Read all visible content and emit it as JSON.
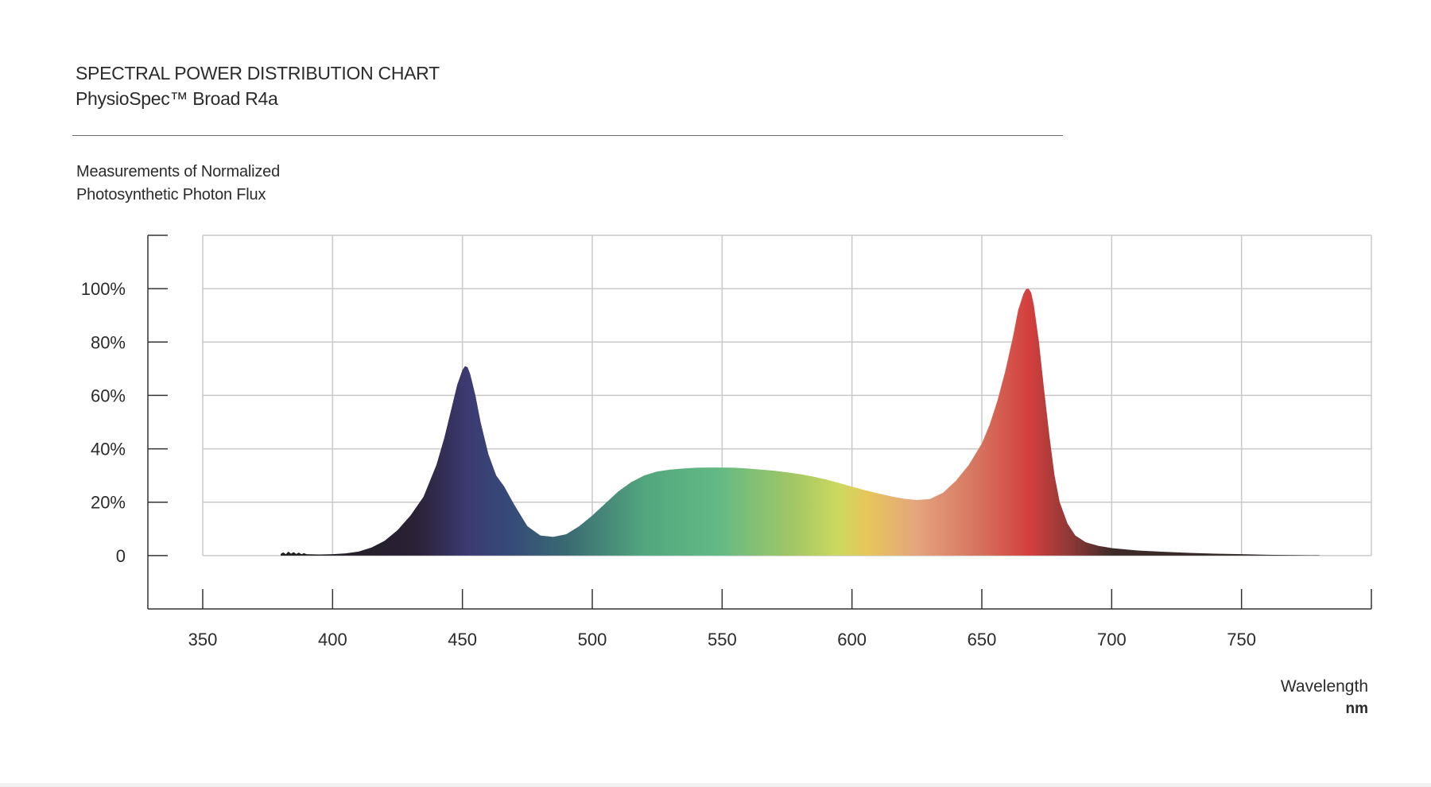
{
  "header": {
    "title": "SPECTRAL POWER DISTRIBUTION CHART",
    "subtitle": "PhysioSpec™ Broad R4a"
  },
  "chart_data": {
    "type": "area",
    "title": "SPECTRAL POWER DISTRIBUTION CHART",
    "subtitle": "PhysioSpec™ Broad R4a",
    "ylabel_lines": [
      "Measurements of Normalized",
      "Photosynthetic Photon Flux"
    ],
    "xlabel": "Wavelength",
    "xunit": "nm",
    "xlim": [
      350,
      800
    ],
    "ylim": [
      -20,
      120
    ],
    "x_ticks": [
      350,
      400,
      450,
      500,
      550,
      600,
      650,
      700,
      750
    ],
    "x_tick_labels": [
      "350",
      "400",
      "450",
      "500",
      "550",
      "600",
      "650",
      "700",
      "750"
    ],
    "y_ticks": [
      0,
      20,
      40,
      60,
      80,
      100
    ],
    "y_tick_labels": [
      "0",
      "20%",
      "40%",
      "60%",
      "80%",
      "100%"
    ],
    "grid": true,
    "legend": "none",
    "gradient_stops": [
      {
        "nm": 380,
        "color": "#1e1e1e"
      },
      {
        "nm": 432,
        "color": "#2a2135"
      },
      {
        "nm": 452,
        "color": "#3c3a72"
      },
      {
        "nm": 468,
        "color": "#354a78"
      },
      {
        "nm": 490,
        "color": "#3a6a72"
      },
      {
        "nm": 520,
        "color": "#52a67e"
      },
      {
        "nm": 548,
        "color": "#62b985"
      },
      {
        "nm": 578,
        "color": "#a4c764"
      },
      {
        "nm": 595,
        "color": "#ccd95f"
      },
      {
        "nm": 606,
        "color": "#e6c65a"
      },
      {
        "nm": 625,
        "color": "#e4a47e"
      },
      {
        "nm": 650,
        "color": "#d5705c"
      },
      {
        "nm": 668,
        "color": "#d4403e"
      },
      {
        "nm": 685,
        "color": "#8a3836"
      },
      {
        "nm": 700,
        "color": "#3e2a28"
      },
      {
        "nm": 780,
        "color": "#2a2a2a"
      }
    ],
    "series": [
      {
        "x": [
          380,
          381,
          382,
          383,
          384,
          385,
          386,
          387,
          388,
          389,
          390,
          395,
          400,
          405,
          410,
          415,
          420,
          425,
          430,
          435,
          440,
          443,
          446,
          448,
          450,
          451,
          452,
          453,
          455,
          457,
          460,
          463,
          466,
          470,
          475,
          480,
          485,
          490,
          495,
          500,
          505,
          510,
          515,
          520,
          525,
          530,
          535,
          540,
          545,
          550,
          555,
          560,
          565,
          570,
          575,
          580,
          585,
          590,
          595,
          600,
          605,
          610,
          615,
          620,
          625,
          630,
          635,
          640,
          645,
          650,
          653,
          656,
          659,
          662,
          664,
          666,
          667,
          668,
          669,
          670,
          672,
          674,
          676,
          678,
          680,
          683,
          686,
          690,
          695,
          700,
          710,
          720,
          730,
          740,
          750,
          760,
          770,
          780
        ],
        "y": [
          0.6,
          1.2,
          0.5,
          1.5,
          0.7,
          1.3,
          0.6,
          1.1,
          0.5,
          0.9,
          0.5,
          0.4,
          0.5,
          0.8,
          1.5,
          3,
          5.5,
          9.5,
          15,
          22,
          34,
          44,
          56,
          64,
          69.5,
          71,
          70.5,
          68,
          60,
          50,
          38,
          30,
          26,
          19,
          11,
          7.5,
          7,
          8,
          11,
          15,
          19.5,
          24,
          27.5,
          30,
          31.5,
          32.2,
          32.6,
          32.9,
          33,
          33,
          32.9,
          32.6,
          32.2,
          31.8,
          31.2,
          30.5,
          29.6,
          28.5,
          27.2,
          25.8,
          24.5,
          23.3,
          22.2,
          21.3,
          20.8,
          21.2,
          23.5,
          28,
          34,
          42,
          49,
          58,
          69,
          82,
          92,
          98,
          99.8,
          100,
          98.5,
          94,
          80,
          62,
          45,
          30,
          20,
          12,
          7.5,
          5,
          3.6,
          2.8,
          1.9,
          1.4,
          1.0,
          0.7,
          0.5,
          0.3,
          0.2,
          0.1
        ]
      }
    ]
  }
}
